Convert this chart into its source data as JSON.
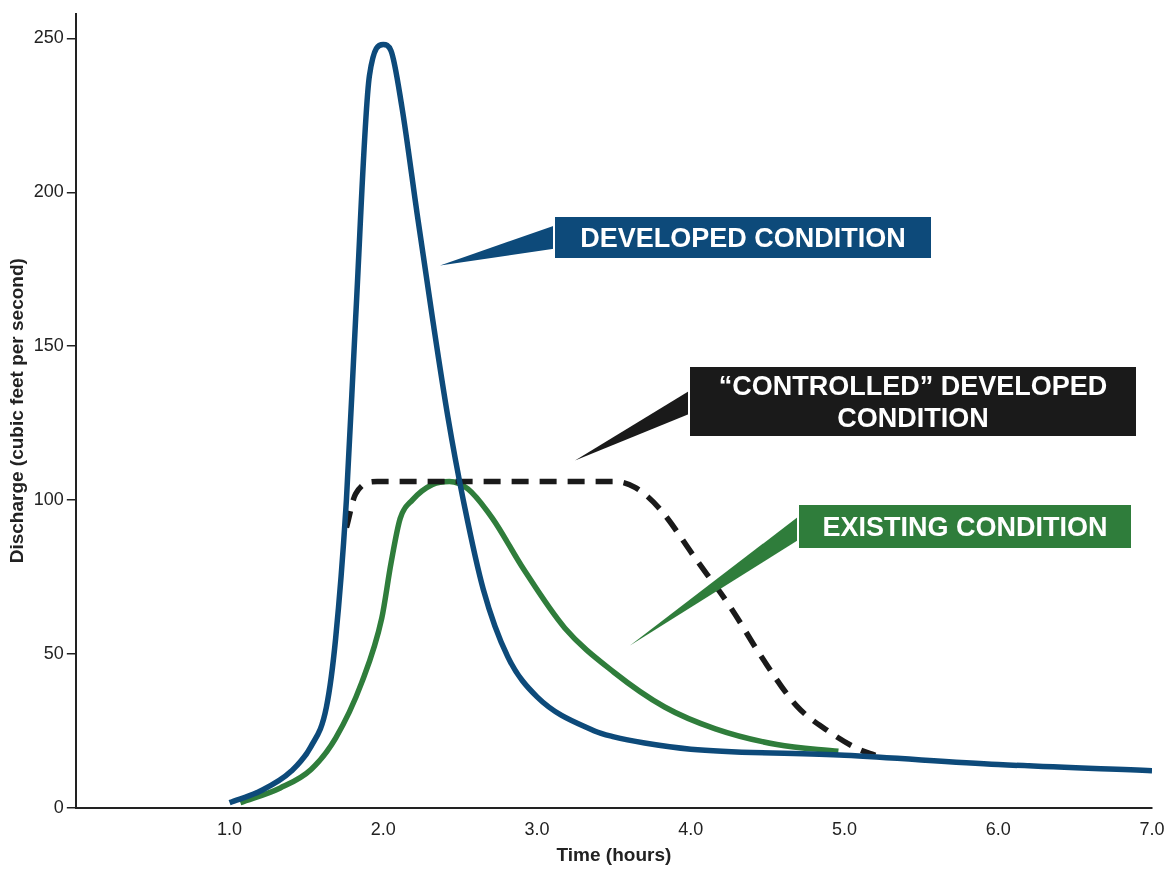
{
  "chart_data": {
    "type": "line",
    "xlabel": "Time (hours)",
    "ylabel": "Discharge (cubic feet per second)",
    "xlim": [
      0,
      7
    ],
    "xticks": [
      {
        "value": 1,
        "label": "1.0"
      },
      {
        "value": 2,
        "label": "2.0"
      },
      {
        "value": 3,
        "label": "3.0"
      },
      {
        "value": 4,
        "label": "4.0"
      },
      {
        "value": 5,
        "label": "5.0"
      },
      {
        "value": 6,
        "label": "6.0"
      },
      {
        "value": 7,
        "label": "7.0"
      }
    ],
    "ylim": [
      0,
      258
    ],
    "yticks": [
      0,
      50,
      100,
      150,
      200,
      250
    ],
    "grid": false,
    "legend": false,
    "marker": "none",
    "series": [
      {
        "color": "#0d4a7a",
        "line_style": "solid",
        "x": [
          1.0,
          1.2,
          1.4,
          1.53,
          1.63,
          1.69,
          1.76,
          1.82,
          1.91,
          2.0,
          2.05,
          2.12,
          2.22,
          2.32,
          2.42,
          2.52,
          2.65,
          2.81,
          3.0,
          3.37,
          3.5,
          3.7,
          4.0,
          5.0,
          6.0,
          7.0
        ],
        "values": [
          1.6,
          5.4,
          11.8,
          19.9,
          32.7,
          55,
          100,
          159,
          238,
          248,
          246,
          228,
          193,
          159,
          127,
          100,
          71,
          49,
          36,
          25,
          23,
          21,
          19,
          17,
          14,
          12
        ]
      },
      {
        "color": "#1a1a1a",
        "line_style": "dashed",
        "x": [
          1.76,
          1.82,
          1.96,
          2.5,
          3.0,
          3.5,
          3.64,
          3.8,
          4.03,
          4.26,
          4.46,
          4.69,
          4.89,
          5.09,
          5.2
        ],
        "values": [
          91,
          102,
          106,
          106,
          106,
          106,
          104,
          97,
          81,
          65,
          49,
          33,
          25,
          19,
          17
        ]
      },
      {
        "color": "#2f7d3b",
        "line_style": "solid",
        "x": [
          1.07,
          1.33,
          1.53,
          1.69,
          1.86,
          1.99,
          2.05,
          2.11,
          2.19,
          2.32,
          2.43,
          2.55,
          2.71,
          2.91,
          3.18,
          3.5,
          3.83,
          4.16,
          4.56,
          4.96
        ],
        "values": [
          1.6,
          6.4,
          12.4,
          22.6,
          40.7,
          61.6,
          79.4,
          94,
          100,
          105,
          106,
          103.6,
          94,
          77.7,
          58.4,
          44,
          32.7,
          25.6,
          20.5,
          18.3
        ]
      }
    ],
    "annotations": [
      "DEVELOPED CONDITION",
      "“CONTROLLED” DEVELOPED\nCONDITION",
      "EXISTING CONDITION"
    ]
  }
}
